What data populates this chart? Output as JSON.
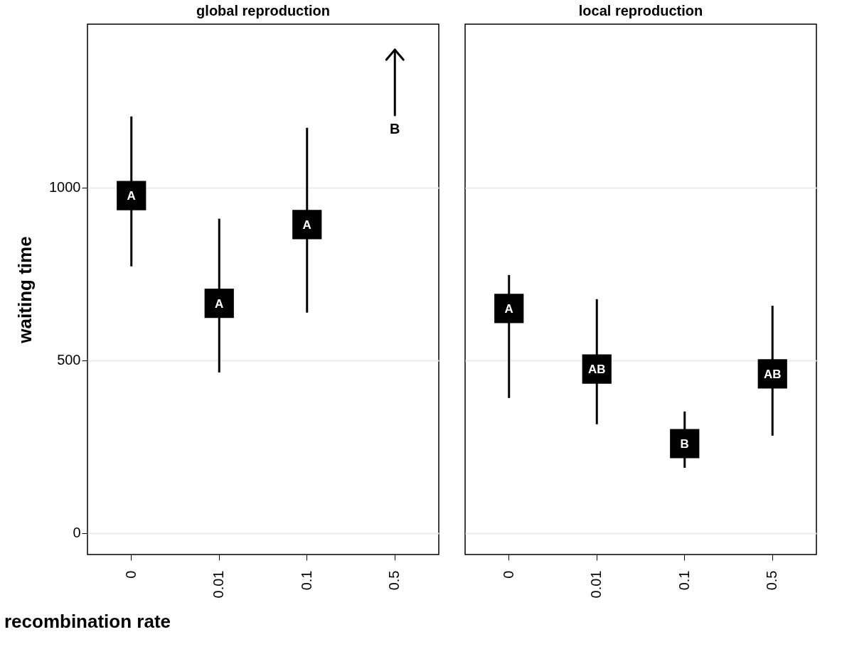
{
  "chart_data": [
    {
      "type": "scatter",
      "title": "global reproduction",
      "xlabel": "recombination rate",
      "ylabel": "waiting time",
      "categories": [
        "0",
        "0.01",
        "0.1",
        "0.5"
      ],
      "series": [
        {
          "color": "#000000",
          "values": [
            977,
            665,
            893,
            null
          ],
          "errors": [
            [
              772,
              1206
            ],
            [
              465,
              910
            ],
            [
              638,
              1173
            ],
            null
          ],
          "value_labels": [
            "A",
            "A",
            "A",
            null
          ]
        }
      ],
      "marker": "square",
      "ylim": [
        -62,
        1473
      ],
      "yticks": [
        0,
        500,
        1000
      ],
      "grid": "y",
      "legend": false,
      "annotations": [
        "B"
      ]
    },
    {
      "type": "scatter",
      "title": "local reproduction",
      "categories": [
        "0",
        "0.01",
        "0.1",
        "0.5"
      ],
      "series": [
        {
          "color": "#000000",
          "values": [
            650,
            475,
            259,
            461
          ],
          "errors": [
            [
              391,
              747
            ],
            [
              315,
              677
            ],
            [
              189,
              352
            ],
            [
              282,
              658
            ]
          ],
          "value_labels": [
            "A",
            "AB",
            "B",
            "AB"
          ]
        }
      ],
      "marker": "square",
      "ylim": [
        -62,
        1473
      ],
      "yticks": [
        0,
        500,
        1000
      ],
      "grid": "y",
      "legend": false,
      "tick_labels": "x"
    }
  ]
}
